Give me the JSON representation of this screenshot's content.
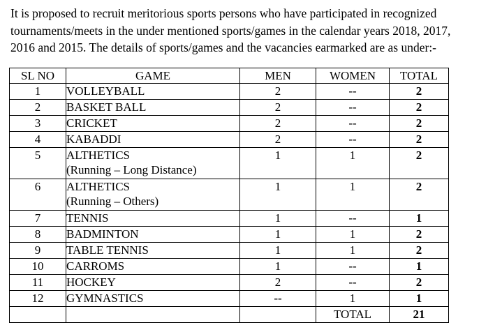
{
  "intro": {
    "lines": [
      "It is proposed to recruit meritorious sports persons who have participated in recognized",
      "tournaments/meets in the under mentioned sports/games in the calendar years  2018,  2017,",
      "2016 and 2015. The details of sports/games and the vacancies earmarked are as under:-"
    ]
  },
  "table": {
    "headers": {
      "sl": "SL NO",
      "game": "GAME",
      "men": "MEN",
      "women": "WOMEN",
      "total": "TOTAL"
    },
    "rows": [
      {
        "sl": "1",
        "game": "VOLLEYBALL",
        "game2": "",
        "men": "2",
        "women": "--",
        "total": "2"
      },
      {
        "sl": "2",
        "game": "BASKET BALL",
        "game2": "",
        "men": "2",
        "women": "--",
        "total": "2"
      },
      {
        "sl": "3",
        "game": "CRICKET",
        "game2": "",
        "men": "2",
        "women": "--",
        "total": "2"
      },
      {
        "sl": "4",
        "game": "KABADDI",
        "game2": "",
        "men": "2",
        "women": "--",
        "total": "2"
      },
      {
        "sl": "5",
        "game": "ALTHETICS",
        "game2": "(Running – Long Distance)",
        "men": "1",
        "women": "1",
        "total": "2"
      },
      {
        "sl": "6",
        "game": "ALTHETICS",
        "game2": "(Running – Others)",
        "men": "1",
        "women": "1",
        "total": "2"
      },
      {
        "sl": "7",
        "game": "TENNIS",
        "game2": "",
        "men": "1",
        "women": "--",
        "total": "1"
      },
      {
        "sl": "8",
        "game": "BADMINTON",
        "game2": "",
        "men": "1",
        "women": "1",
        "total": "2"
      },
      {
        "sl": "9",
        "game": "TABLE TENNIS",
        "game2": "",
        "men": "1",
        "women": "1",
        "total": "2"
      },
      {
        "sl": "10",
        "game": "CARROMS",
        "game2": "",
        "men": "1",
        "women": "--",
        "total": "1"
      },
      {
        "sl": "11",
        "game": "HOCKEY",
        "game2": "",
        "men": "2",
        "women": "--",
        "total": "2"
      },
      {
        "sl": "12",
        "game": "GYMNASTICS",
        "game2": "",
        "men": "--",
        "women": "1",
        "total": "1"
      }
    ],
    "footer": {
      "label": "TOTAL",
      "value": "21"
    }
  }
}
